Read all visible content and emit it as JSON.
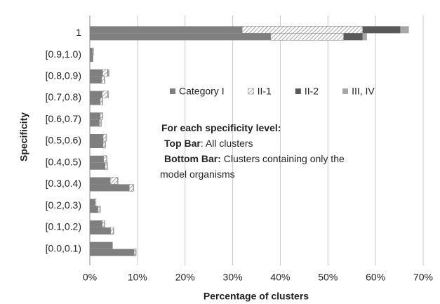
{
  "chart_data": {
    "type": "bar",
    "orientation": "horizontal",
    "stacked": true,
    "categories": [
      "1",
      "[0.9,1.0)",
      "[0.8,0.9)",
      "[0.7,0.8)",
      "[0.6,0.7)",
      "[0.5,0.6)",
      "[0.4,0.5)",
      "[0.3,0.4)",
      "[0.2,0.3)",
      "[0.1,0.2)",
      "[0.0,0.1)"
    ],
    "series": [
      {
        "name": "Category I",
        "color": "#7f7f7f",
        "values": [
          32,
          0.6,
          2.7,
          2.6,
          2.2,
          2.8,
          2.9,
          4.3,
          1.1,
          2.6,
          4.8
        ],
        "values_bottom": [
          38,
          0.7,
          2.5,
          2.2,
          2.0,
          2.8,
          3.2,
          8.3,
          1.7,
          4.4,
          9.3
        ]
      },
      {
        "name": "II-1",
        "color": "#8c8c8c",
        "pattern": "diagonal",
        "values": [
          25.3,
          0.2,
          1.0,
          1.1,
          0.4,
          0.6,
          0.6,
          1.5,
          0.2,
          0.4,
          0
        ],
        "values_bottom": [
          15.3,
          0,
          0.5,
          0.4,
          0.3,
          0.4,
          0.4,
          0.8,
          0.4,
          0.5,
          0.3
        ]
      },
      {
        "name": "II-2",
        "color": "#595959",
        "values": [
          7.9,
          0,
          0.1,
          0,
          0,
          0,
          0,
          0,
          0,
          0,
          0
        ],
        "values_bottom": [
          4,
          0,
          0,
          0,
          0,
          0,
          0,
          0,
          0,
          0,
          0
        ]
      },
      {
        "name": "III, IV",
        "color": "#a6a6a6",
        "values": [
          1.8,
          0,
          0.3,
          0.3,
          0.2,
          0.2,
          0.2,
          0.2,
          0,
          0.2,
          0
        ],
        "values_bottom": [
          0.9,
          0,
          0.2,
          0.2,
          0.2,
          0.2,
          0.2,
          0.2,
          0.2,
          0.2,
          0.2
        ]
      }
    ],
    "xlim": [
      0,
      70
    ],
    "xticks": [
      {
        "value": 0,
        "label": "0%"
      },
      {
        "value": 10,
        "label": "10%"
      },
      {
        "value": 20,
        "label": "20%"
      },
      {
        "value": 30,
        "label": "30%"
      },
      {
        "value": 40,
        "label": "40%"
      },
      {
        "value": 50,
        "label": "50%"
      },
      {
        "value": 60,
        "label": "60%"
      },
      {
        "value": 70,
        "label": "70%"
      }
    ],
    "grid": true,
    "x_label": "Percentage of clusters",
    "y_label": "Specificity",
    "annotation": [
      [
        {
          "bold": "For each specificity level:"
        }
      ],
      [
        {
          "bold": "Top Bar"
        },
        {
          "text": ": All clusters"
        }
      ],
      [
        {
          "bold": "Bottom Bar:"
        },
        {
          "text": "  Clusters containing  only the"
        }
      ],
      [
        {
          "text": "model organisms"
        }
      ]
    ]
  }
}
